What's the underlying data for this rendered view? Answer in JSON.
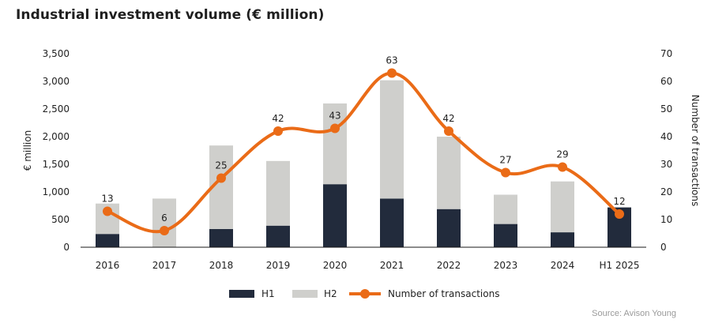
{
  "title": "Industrial investment volume (€ million)",
  "source": "Source: Avison Young",
  "colors": {
    "h1": "#222b3c",
    "h2": "#cfcfcc",
    "line": "#ea6b17",
    "axis": "#1a1a1a",
    "text": "#222222"
  },
  "chart_data": {
    "type": "bar",
    "stacked": true,
    "categories": [
      "2016",
      "2017",
      "2018",
      "2019",
      "2020",
      "2021",
      "2022",
      "2023",
      "2024",
      "H1 2025"
    ],
    "series": [
      {
        "name": "H1",
        "values": [
          240,
          0,
          330,
          390,
          1140,
          880,
          690,
          420,
          270,
          720
        ]
      },
      {
        "name": "H2",
        "values": [
          550,
          880,
          1510,
          1170,
          1460,
          2140,
          1310,
          530,
          920,
          0
        ]
      }
    ],
    "line_series": {
      "name": "Number of transactions",
      "values": [
        13,
        6,
        25,
        42,
        43,
        63,
        42,
        27,
        29,
        12
      ],
      "labels": [
        "13",
        "6",
        "25",
        "42",
        "43",
        "63",
        "42",
        "27",
        "29",
        "12"
      ],
      "axis": "right"
    },
    "ylabel": "€ million",
    "y2label": "Number of transactions",
    "ylim": [
      0,
      3500
    ],
    "y2lim": [
      0,
      70
    ],
    "y_ticks": [
      "0",
      "500",
      "1,000",
      "1,500",
      "2,000",
      "2,500",
      "3,000",
      "3,500"
    ],
    "y2_ticks": [
      "0",
      "10",
      "20",
      "30",
      "40",
      "50",
      "60",
      "70"
    ],
    "legend_position": "bottom",
    "grid": false
  }
}
